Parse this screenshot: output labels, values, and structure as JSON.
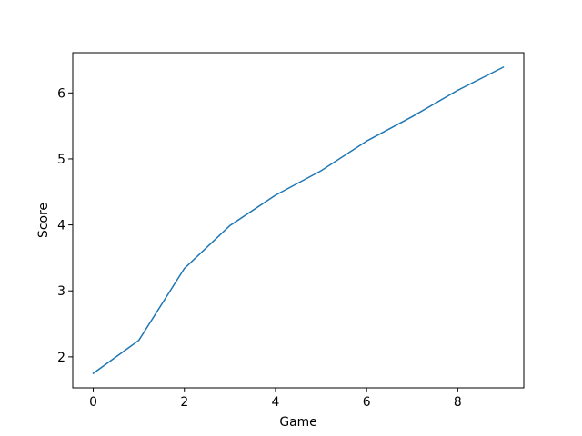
{
  "chart_data": {
    "type": "line",
    "title": "",
    "xlabel": "Game",
    "ylabel": "Score",
    "xlim": [
      -0.45,
      9.45
    ],
    "ylim": [
      1.53,
      6.61
    ],
    "xticks": [
      0,
      2,
      4,
      6,
      8
    ],
    "yticks": [
      2,
      3,
      4,
      5,
      6
    ],
    "grid": false,
    "legend": "none",
    "series": [
      {
        "color": "#1f77b4",
        "x": [
          0,
          1,
          2,
          3,
          4,
          5,
          6,
          7,
          8,
          9
        ],
        "y": [
          1.75,
          2.25,
          3.34,
          3.99,
          4.45,
          4.82,
          5.27,
          5.64,
          6.04,
          6.39
        ]
      }
    ]
  }
}
